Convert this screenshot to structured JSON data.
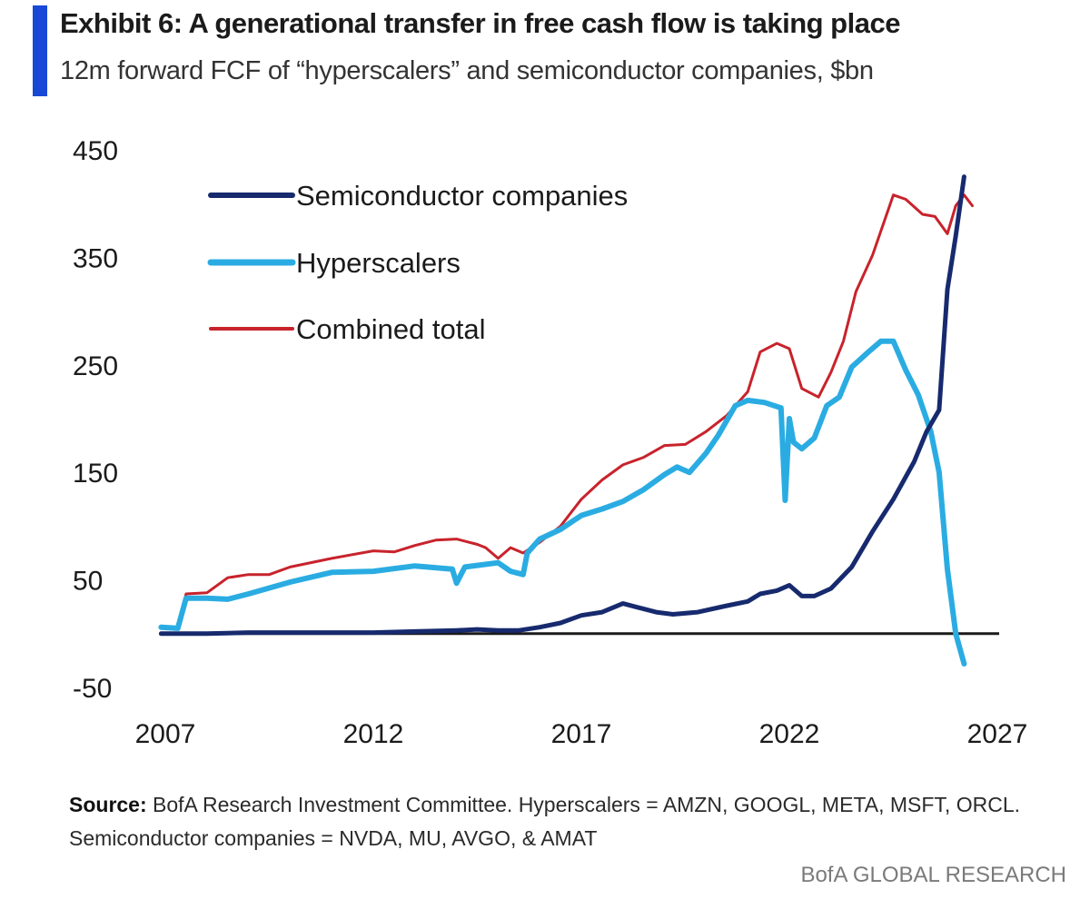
{
  "header": {
    "title": "Exhibit 6: A generational transfer in free cash flow is taking place",
    "subtitle": "12m forward FCF of “hyperscalers” and semiconductor companies, $bn",
    "accent_color": "#1748d6"
  },
  "chart_data": {
    "type": "line",
    "title": "Exhibit 6: A generational transfer in free cash flow is taking place",
    "subtitle": "12m forward FCF of “hyperscalers” and semiconductor companies, $bn",
    "xlabel": "",
    "ylabel": "",
    "xlim": [
      2007,
      2027
    ],
    "ylim": [
      -50,
      450
    ],
    "x_ticks": [
      "2007",
      "2012",
      "2017",
      "2022",
      "2027"
    ],
    "y_ticks": [
      "450",
      "350",
      "250",
      "150",
      "50",
      "-50"
    ],
    "y_tick_values": [
      450,
      350,
      250,
      150,
      50,
      -50
    ],
    "x_tick_values": [
      2007,
      2012,
      2017,
      2022,
      2027
    ],
    "zero_line": true,
    "grid": false,
    "legend_position": "top-left",
    "series": [
      {
        "name": "Semiconductor companies",
        "color": "#172a6e",
        "points": [
          [
            2006.9,
            0
          ],
          [
            2008,
            0
          ],
          [
            2009,
            1
          ],
          [
            2010,
            1
          ],
          [
            2011,
            1
          ],
          [
            2012,
            1
          ],
          [
            2013,
            2
          ],
          [
            2014,
            3
          ],
          [
            2014.5,
            4
          ],
          [
            2015,
            3
          ],
          [
            2015.5,
            3
          ],
          [
            2016,
            6
          ],
          [
            2016.5,
            10
          ],
          [
            2017,
            17
          ],
          [
            2017.5,
            20
          ],
          [
            2018,
            28
          ],
          [
            2018.3,
            25
          ],
          [
            2018.8,
            20
          ],
          [
            2019.2,
            18
          ],
          [
            2019.8,
            20
          ],
          [
            2020.5,
            26
          ],
          [
            2021,
            30
          ],
          [
            2021.3,
            37
          ],
          [
            2021.7,
            40
          ],
          [
            2022,
            45
          ],
          [
            2022.3,
            35
          ],
          [
            2022.6,
            35
          ],
          [
            2023,
            42
          ],
          [
            2023.5,
            62
          ],
          [
            2024,
            95
          ],
          [
            2024.5,
            125
          ],
          [
            2025,
            160
          ],
          [
            2025.3,
            188
          ],
          [
            2025.6,
            208
          ],
          [
            2025.8,
            320
          ],
          [
            2026,
            370
          ],
          [
            2026.2,
            425
          ]
        ]
      },
      {
        "name": "Hyperscalers",
        "color": "#2aace2",
        "points": [
          [
            2006.9,
            6
          ],
          [
            2007.3,
            5
          ],
          [
            2007.5,
            33
          ],
          [
            2008,
            33
          ],
          [
            2008.5,
            32
          ],
          [
            2009,
            37
          ],
          [
            2010,
            48
          ],
          [
            2011,
            57
          ],
          [
            2012,
            58
          ],
          [
            2013,
            63
          ],
          [
            2013.9,
            60
          ],
          [
            2014,
            47
          ],
          [
            2014.2,
            62
          ],
          [
            2015,
            66
          ],
          [
            2015.3,
            58
          ],
          [
            2015.6,
            55
          ],
          [
            2015.7,
            75
          ],
          [
            2016,
            88
          ],
          [
            2016.5,
            97
          ],
          [
            2017,
            110
          ],
          [
            2017.5,
            116
          ],
          [
            2018,
            123
          ],
          [
            2018.5,
            134
          ],
          [
            2019,
            148
          ],
          [
            2019.3,
            155
          ],
          [
            2019.6,
            150
          ],
          [
            2020,
            168
          ],
          [
            2020.3,
            185
          ],
          [
            2020.7,
            212
          ],
          [
            2021,
            217
          ],
          [
            2021.4,
            215
          ],
          [
            2021.8,
            210
          ],
          [
            2021.9,
            124
          ],
          [
            2022,
            200
          ],
          [
            2022.1,
            178
          ],
          [
            2022.3,
            172
          ],
          [
            2022.6,
            182
          ],
          [
            2022.9,
            212
          ],
          [
            2023.2,
            220
          ],
          [
            2023.5,
            248
          ],
          [
            2023.9,
            262
          ],
          [
            2024.2,
            272
          ],
          [
            2024.5,
            272
          ],
          [
            2024.8,
            245
          ],
          [
            2025.1,
            222
          ],
          [
            2025.4,
            188
          ],
          [
            2025.6,
            150
          ],
          [
            2025.8,
            60
          ],
          [
            2026,
            0
          ],
          [
            2026.2,
            -28
          ]
        ]
      },
      {
        "name": "Combined total",
        "color": "#c8232c",
        "points": [
          [
            2006.9,
            6
          ],
          [
            2007.3,
            6
          ],
          [
            2007.5,
            37
          ],
          [
            2008,
            38
          ],
          [
            2008.5,
            52
          ],
          [
            2009,
            55
          ],
          [
            2009.5,
            55
          ],
          [
            2010,
            62
          ],
          [
            2011,
            70
          ],
          [
            2012,
            77
          ],
          [
            2012.5,
            76
          ],
          [
            2013,
            82
          ],
          [
            2013.5,
            87
          ],
          [
            2014,
            88
          ],
          [
            2014.5,
            83
          ],
          [
            2014.7,
            80
          ],
          [
            2015,
            70
          ],
          [
            2015.3,
            80
          ],
          [
            2015.6,
            75
          ],
          [
            2016,
            85
          ],
          [
            2016.5,
            100
          ],
          [
            2017,
            125
          ],
          [
            2017.5,
            143
          ],
          [
            2018,
            157
          ],
          [
            2018.5,
            164
          ],
          [
            2019,
            175
          ],
          [
            2019.5,
            176
          ],
          [
            2020,
            188
          ],
          [
            2020.5,
            203
          ],
          [
            2021,
            225
          ],
          [
            2021.3,
            262
          ],
          [
            2021.7,
            270
          ],
          [
            2022,
            265
          ],
          [
            2022.3,
            228
          ],
          [
            2022.7,
            220
          ],
          [
            2023,
            243
          ],
          [
            2023.3,
            272
          ],
          [
            2023.6,
            318
          ],
          [
            2024,
            352
          ],
          [
            2024.5,
            408
          ],
          [
            2024.8,
            404
          ],
          [
            2025.2,
            390
          ],
          [
            2025.5,
            388
          ],
          [
            2025.8,
            372
          ],
          [
            2026,
            398
          ],
          [
            2026.2,
            408
          ],
          [
            2026.4,
            398
          ]
        ]
      }
    ]
  },
  "footer": {
    "source_label": "Source:",
    "source_line1": " BofA Research Investment Committee. Hyperscalers = AMZN, GOOGL, META, MSFT, ORCL.",
    "source_line2": "Semiconductor companies = NVDA, MU, AVGO, & AMAT",
    "brand": "BofA GLOBAL RESEARCH"
  }
}
